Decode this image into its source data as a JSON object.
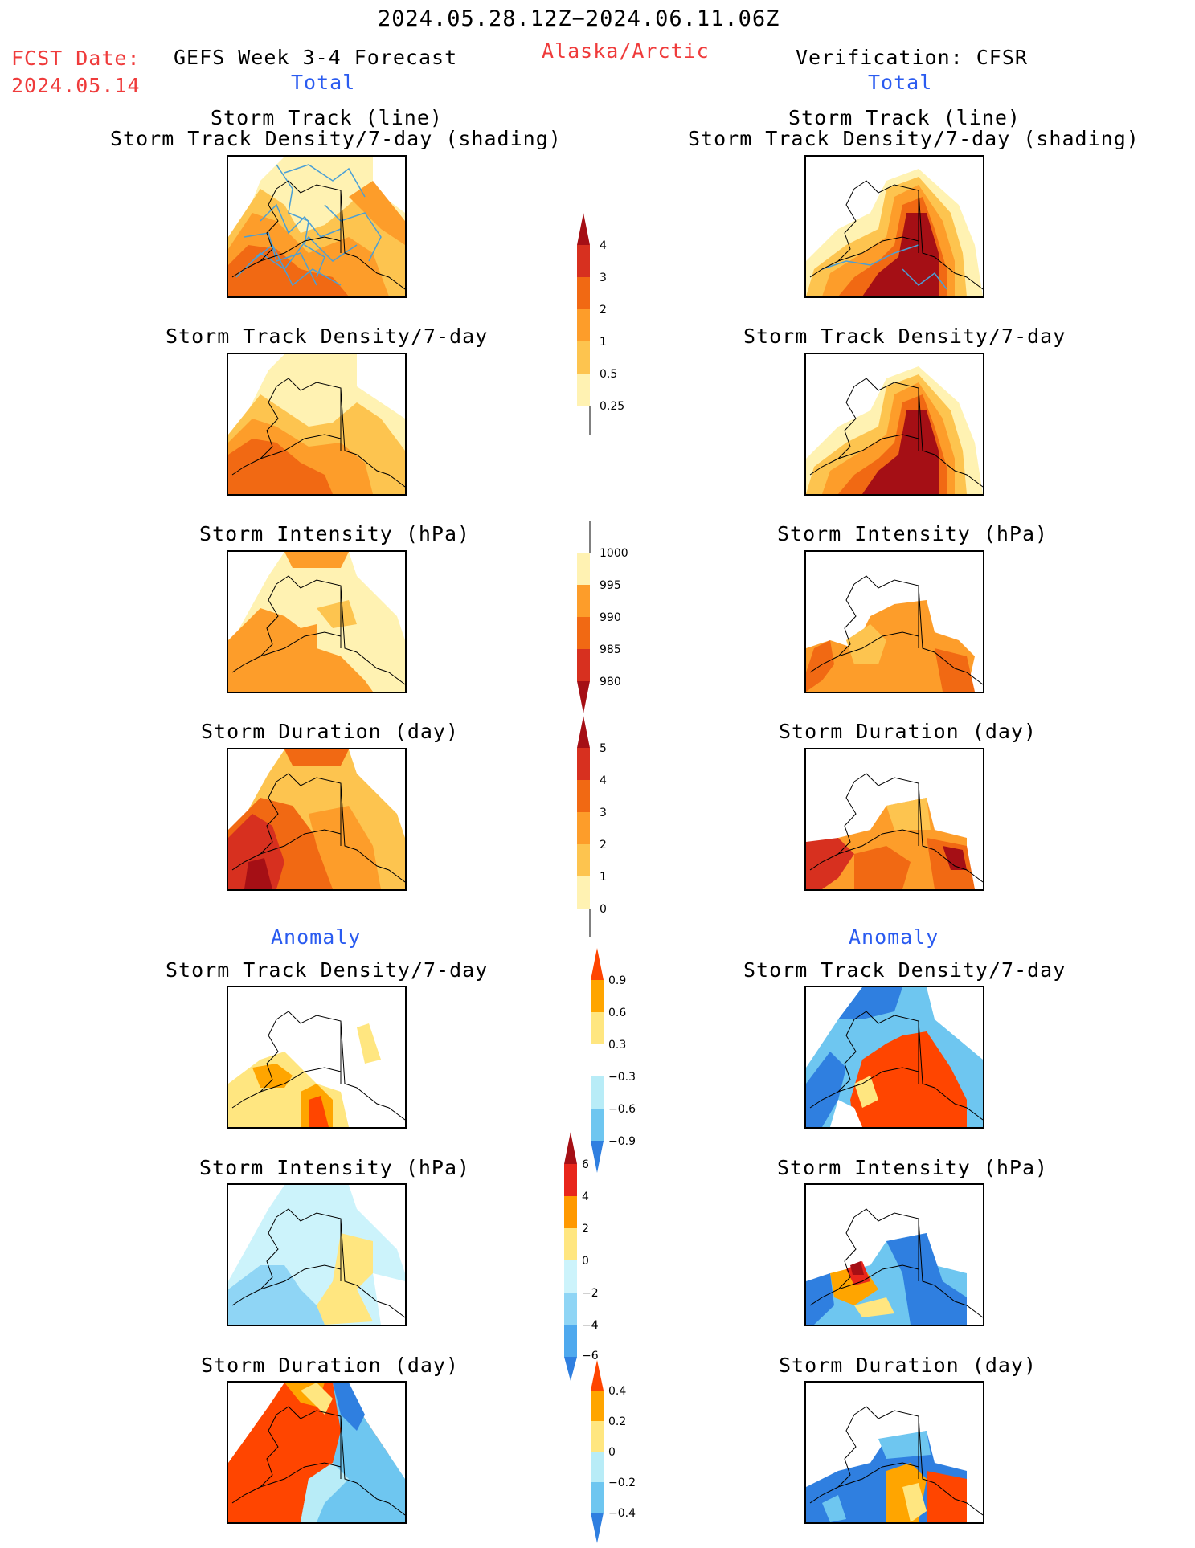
{
  "header": {
    "period": "2024.05.28.12Z−2024.06.11.06Z",
    "fcst_label": "FCST Date:",
    "fcst_date": "2024.05.14",
    "forecast_title": "GEFS Week 3-4 Forecast",
    "region": "Alaska/Arctic",
    "verification": "Verification: CFSR"
  },
  "sections": {
    "total": "Total",
    "anomaly": "Anomaly"
  },
  "titles": {
    "track_line": "Storm Track (line)",
    "track_density_shading": "Storm Track Density/7-day (shading)",
    "track_density": "Storm Track Density/7-day",
    "intensity": "Storm Intensity (hPa)",
    "duration": "Storm Duration (day)"
  },
  "colorbars": {
    "density": {
      "labels": [
        "4",
        "3",
        "2",
        "1",
        "0.5",
        "0.25"
      ],
      "colors": [
        "#a50f15",
        "#d7301f",
        "#f16913",
        "#fd9d2a",
        "#fdc44f",
        "#fff2b2"
      ]
    },
    "intensity": {
      "labels": [
        "1000",
        "995",
        "990",
        "985",
        "980"
      ],
      "colors": [
        "#fff2b2",
        "#fd9d2a",
        "#f16913",
        "#d7301f",
        "#a50f15"
      ]
    },
    "duration": {
      "labels": [
        "5",
        "4",
        "3",
        "2",
        "1",
        "0"
      ],
      "colors": [
        "#a50f15",
        "#d7301f",
        "#f16913",
        "#fd9d2a",
        "#fdc44f",
        "#fff2b2"
      ]
    },
    "anom_density": {
      "labels": [
        "0.9",
        "0.6",
        "0.3",
        "−0.3",
        "−0.6",
        "−0.9"
      ],
      "colors": [
        "#ff4500",
        "#ffa500",
        "#ffe680",
        "#ffffff",
        "#b8ecf7",
        "#6ec6f0",
        "#2f7fe0"
      ]
    },
    "anom_intensity": {
      "labels": [
        "6",
        "4",
        "2",
        "0",
        "−2",
        "−4",
        "−6"
      ],
      "colors": [
        "#e8261b",
        "#ff9900",
        "#ffe680",
        "#ccf3fb",
        "#8fd5f5",
        "#4ea9ee",
        "#2f7fe0"
      ]
    },
    "anom_duration": {
      "labels": [
        "0.4",
        "0.2",
        "0",
        "−0.2",
        "−0.4"
      ],
      "colors": [
        "#ff4500",
        "#ffa500",
        "#ffe680",
        "#b8ecf7",
        "#6ec6f0",
        "#2f7fe0"
      ]
    }
  },
  "colors": {
    "title_red": "#ef3b3b",
    "title_blue": "#2a5bf0",
    "track_line": "#4a9fd6"
  }
}
